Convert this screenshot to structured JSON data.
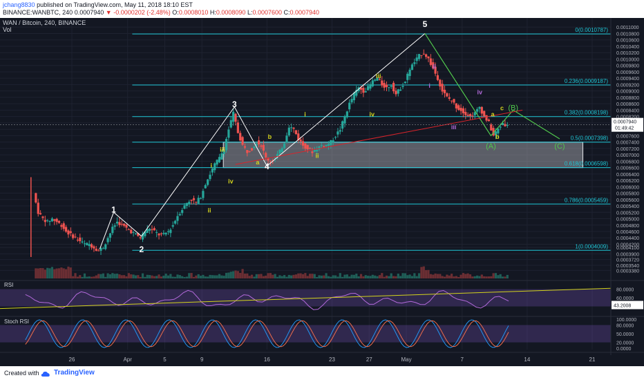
{
  "header": {
    "username": "jchang8830",
    "published_text": "published on TradingView.com, May 11, 2018 18:10 EST",
    "symbol_line": "BINANCE:WANBTC, 240",
    "last_price": "0.0007940",
    "change": "-0.0000202 (-2.48%)",
    "ohlc": {
      "o_label": "O:",
      "o": "0.0008010",
      "h_label": "H:",
      "h": "0.0008090",
      "l_label": "L:",
      "l": "0.0007600",
      "c_label": "C:",
      "c": "0.0007940"
    }
  },
  "legend": {
    "title": "WAN / Bitcoin, 240, BINANCE",
    "vol": "Vol"
  },
  "footer": {
    "created_with": "Created with",
    "brand": "TradingView"
  },
  "colors": {
    "bg": "#131722",
    "fib": "#1ec7d6",
    "up": "#26a69a",
    "down": "#ef5350",
    "wave_main": "#ffffff",
    "wave_sub": "#d4d41c",
    "wave_abc": "#51c84d",
    "purple": "#b36adb",
    "trend": "#d9242b"
  },
  "chart_data": {
    "type": "candlestick",
    "symbol": "WAN / Bitcoin",
    "exchange": "BINANCE",
    "interval": "240",
    "ylim": [
      0.000315,
      0.00112
    ],
    "price_axis_ticks": [
      "0.0011000",
      "0.0010800",
      "0.0010600",
      "0.0010400",
      "0.0010200",
      "0.0010000",
      "0.0009800",
      "0.0009600",
      "0.0009400",
      "0.0009200",
      "0.0009000",
      "0.0008800",
      "0.0008600",
      "0.0008400",
      "0.0008200",
      "0.0008000",
      "0.0007800",
      "0.0007600",
      "0.0007400",
      "0.0007200",
      "0.0007000",
      "0.0006800",
      "0.0006600",
      "0.0006400",
      "0.0006200",
      "0.0006000",
      "0.0005800",
      "0.0005600",
      "0.0005400",
      "0.0005200",
      "0.0005000",
      "0.0004800",
      "0.0004600",
      "0.0004400",
      "0.0004200",
      "0.0004100",
      "0.0003900",
      "0.0003720",
      "0.0003540",
      "0.0003380"
    ],
    "price_axis_values": [
      0.0011,
      0.00108,
      0.00106,
      0.00104,
      0.00102,
      0.001,
      0.00098,
      0.00096,
      0.00094,
      0.00092,
      0.0009,
      0.00088,
      0.00086,
      0.00084,
      0.00082,
      0.0008,
      0.00078,
      0.00076,
      0.00074,
      0.00072,
      0.0007,
      0.00068,
      0.00066,
      0.00064,
      0.00062,
      0.0006,
      0.00058,
      0.00056,
      0.00054,
      0.00052,
      0.0005,
      0.00048,
      0.00046,
      0.00044,
      0.00042,
      0.00041,
      0.00039,
      0.000372,
      0.000354,
      0.000338
    ],
    "last_price_label": "0.0007940",
    "countdown": "01:49:42",
    "time_labels": [
      {
        "label": "26",
        "day": 0
      },
      {
        "label": "Apr",
        "day": 6
      },
      {
        "label": "5",
        "day": 10
      },
      {
        "label": "9",
        "day": 14
      },
      {
        "label": "16",
        "day": 21
      },
      {
        "label": "23",
        "day": 28
      },
      {
        "label": "27",
        "day": 32
      },
      {
        "label": "May",
        "day": 36
      },
      {
        "label": "7",
        "day": 42
      },
      {
        "label": "14",
        "day": 49
      },
      {
        "label": "21",
        "day": 56
      }
    ],
    "time_day_scale": {
      "day_ref_a": 0,
      "day_ref_b": 56
    },
    "fib_levels": [
      {
        "label": "0(0.0010787)",
        "price": 0.0010787
      },
      {
        "label": "0.236(0.0009187)",
        "price": 0.0009187
      },
      {
        "label": "0.382(0.0008198)",
        "price": 0.0008198
      },
      {
        "label": "0.5(0.0007398)",
        "price": 0.0007398
      },
      {
        "label": "0.618(0.0006598)",
        "price": 0.0006598
      },
      {
        "label": "0.786(0.0005459)",
        "price": 0.0005459
      },
      {
        "label": "1(0.0004009)",
        "price": 0.0004009
      }
    ],
    "price_path": [
      [
        -4,
        0.00058
      ],
      [
        -3.5,
        0.00052
      ],
      [
        -3,
        0.0005
      ],
      [
        -2.5,
        0.00049
      ],
      [
        -2,
        0.0005
      ],
      [
        -1.5,
        0.00049
      ],
      [
        -1,
        0.00048
      ],
      [
        -0.5,
        0.00046
      ],
      [
        0,
        0.00045
      ],
      [
        0.5,
        0.00044
      ],
      [
        1,
        0.00043
      ],
      [
        1.5,
        0.00042
      ],
      [
        2,
        0.00042
      ],
      [
        2.5,
        0.00041
      ],
      [
        3,
        0.0004
      ],
      [
        3.5,
        0.00041
      ],
      [
        4,
        0.00044
      ],
      [
        4.5,
        0.00047
      ],
      [
        5,
        0.00049
      ],
      [
        5.5,
        0.00048
      ],
      [
        6,
        0.00047
      ],
      [
        6.5,
        0.00046
      ],
      [
        7,
        0.00045
      ],
      [
        7.5,
        0.00044
      ],
      [
        8,
        0.00046
      ],
      [
        8.5,
        0.00047
      ],
      [
        9,
        0.00046
      ],
      [
        9.5,
        0.00045
      ],
      [
        10,
        0.00045
      ],
      [
        10.5,
        0.00046
      ],
      [
        11,
        0.00048
      ],
      [
        11.5,
        0.00051
      ],
      [
        12,
        0.00053
      ],
      [
        12.5,
        0.00055
      ],
      [
        13,
        0.00056
      ],
      [
        13.5,
        0.00055
      ],
      [
        14,
        0.00057
      ],
      [
        14.5,
        0.00061
      ],
      [
        15,
        0.00064
      ],
      [
        15.5,
        0.00067
      ],
      [
        16,
        0.00069
      ],
      [
        16.5,
        0.00072
      ],
      [
        17,
        0.00078
      ],
      [
        17.5,
        0.00083
      ],
      [
        18,
        0.00077
      ],
      [
        18.5,
        0.00073
      ],
      [
        19,
        0.00071
      ],
      [
        19.5,
        0.00072
      ],
      [
        20,
        0.00074
      ],
      [
        20.5,
        0.00073
      ],
      [
        21,
        0.00069
      ],
      [
        21.5,
        0.00068
      ],
      [
        22,
        0.00069
      ],
      [
        22.5,
        0.00071
      ],
      [
        23,
        0.00074
      ],
      [
        23.5,
        0.00079
      ],
      [
        24,
        0.00078
      ],
      [
        24.5,
        0.00075
      ],
      [
        25,
        0.00073
      ],
      [
        25.5,
        0.00072
      ],
      [
        26,
        0.00071
      ],
      [
        26.5,
        0.00072
      ],
      [
        27,
        0.00073
      ],
      [
        27.5,
        0.00073
      ],
      [
        28,
        0.00074
      ],
      [
        28.5,
        0.00076
      ],
      [
        29,
        0.00078
      ],
      [
        29.5,
        0.00082
      ],
      [
        30,
        0.00086
      ],
      [
        30.5,
        0.00089
      ],
      [
        31,
        0.00091
      ],
      [
        31.5,
        0.0009
      ],
      [
        32,
        0.00091
      ],
      [
        32.5,
        0.00093
      ],
      [
        33,
        0.00094
      ],
      [
        33.5,
        0.00092
      ],
      [
        34,
        0.00091
      ],
      [
        34.5,
        0.00092
      ],
      [
        35,
        0.00089
      ],
      [
        35.5,
        0.00091
      ],
      [
        36,
        0.00093
      ],
      [
        36.5,
        0.00097
      ],
      [
        37,
        0.00099
      ],
      [
        37.5,
        0.00101
      ],
      [
        38,
        0.00102
      ],
      [
        38.5,
        0.001
      ],
      [
        39,
        0.00097
      ],
      [
        39.5,
        0.00094
      ],
      [
        40,
        0.0009
      ],
      [
        40.5,
        0.00088
      ],
      [
        41,
        0.00087
      ],
      [
        41.5,
        0.00085
      ],
      [
        42,
        0.00084
      ],
      [
        42.5,
        0.00083
      ],
      [
        43,
        0.00082
      ],
      [
        43.5,
        0.00083
      ],
      [
        44,
        0.00085
      ],
      [
        44.5,
        0.00082
      ],
      [
        45,
        0.0008
      ],
      [
        45.5,
        0.00076
      ],
      [
        46,
        0.00078
      ],
      [
        46.5,
        0.0008
      ],
      [
        47,
        0.00079
      ]
    ],
    "waves": {
      "main": [
        {
          "label": "1",
          "day": 4.5,
          "price": 0.00052
        },
        {
          "label": "2",
          "day": 7.5,
          "price": 0.000395
        },
        {
          "label": "3",
          "day": 17.5,
          "price": 0.00085
        },
        {
          "label": "4",
          "day": 21.0,
          "price": 0.000655
        },
        {
          "label": "5",
          "day": 38,
          "price": 0.0011
        }
      ],
      "sub": [
        {
          "label": "i",
          "day": 15.0,
          "price": 0.00066
        },
        {
          "label": "ii",
          "day": 14.8,
          "price": 0.00052
        },
        {
          "label": "iii",
          "day": 16.2,
          "price": 0.00071
        },
        {
          "label": "iv",
          "day": 17.1,
          "price": 0.00061
        },
        {
          "label": "a",
          "day": 20.0,
          "price": 0.00067
        },
        {
          "label": "b",
          "day": 21.3,
          "price": 0.00075
        },
        {
          "label": "i",
          "day": 25.1,
          "price": 0.00082
        },
        {
          "label": "ii",
          "day": 26.4,
          "price": 0.00069
        },
        {
          "label": "iii",
          "day": 33.0,
          "price": 0.00094
        },
        {
          "label": "iv",
          "day": 32.3,
          "price": 0.00082
        },
        {
          "label": "a",
          "day": 45.3,
          "price": 0.00082
        },
        {
          "label": "b",
          "day": 45.8,
          "price": 0.00075
        },
        {
          "label": "c",
          "day": 46.3,
          "price": 0.00084
        }
      ],
      "purple": [
        {
          "label": "i",
          "day": 38.5,
          "price": 0.00091
        },
        {
          "label": "ii",
          "day": 39.0,
          "price": 0.00097
        },
        {
          "label": "iii",
          "day": 41.1,
          "price": 0.00078
        },
        {
          "label": "iv",
          "day": 43.9,
          "price": 0.00089
        }
      ],
      "abc": [
        {
          "label": "(A)",
          "day": 45.1,
          "price": 0.00072
        },
        {
          "label": "(B)",
          "day": 47.5,
          "price": 0.00084
        },
        {
          "label": "(C)",
          "day": 52.5,
          "price": 0.00072
        }
      ]
    },
    "indicators": {
      "rsi": {
        "label": "RSI",
        "ticks": [
          "80.0000",
          "60.0000",
          "40.0000"
        ],
        "tick_values": [
          80,
          60,
          40
        ],
        "value": "43.2008",
        "range": [
          20,
          100
        ]
      },
      "stoch": {
        "label": "Stoch RSI",
        "ticks": [
          "100.0000",
          "80.0000",
          "50.0000",
          "20.0000",
          "0.0000"
        ],
        "tick_values": [
          100,
          80,
          50,
          20,
          0
        ],
        "range": [
          -5,
          105
        ]
      }
    }
  }
}
